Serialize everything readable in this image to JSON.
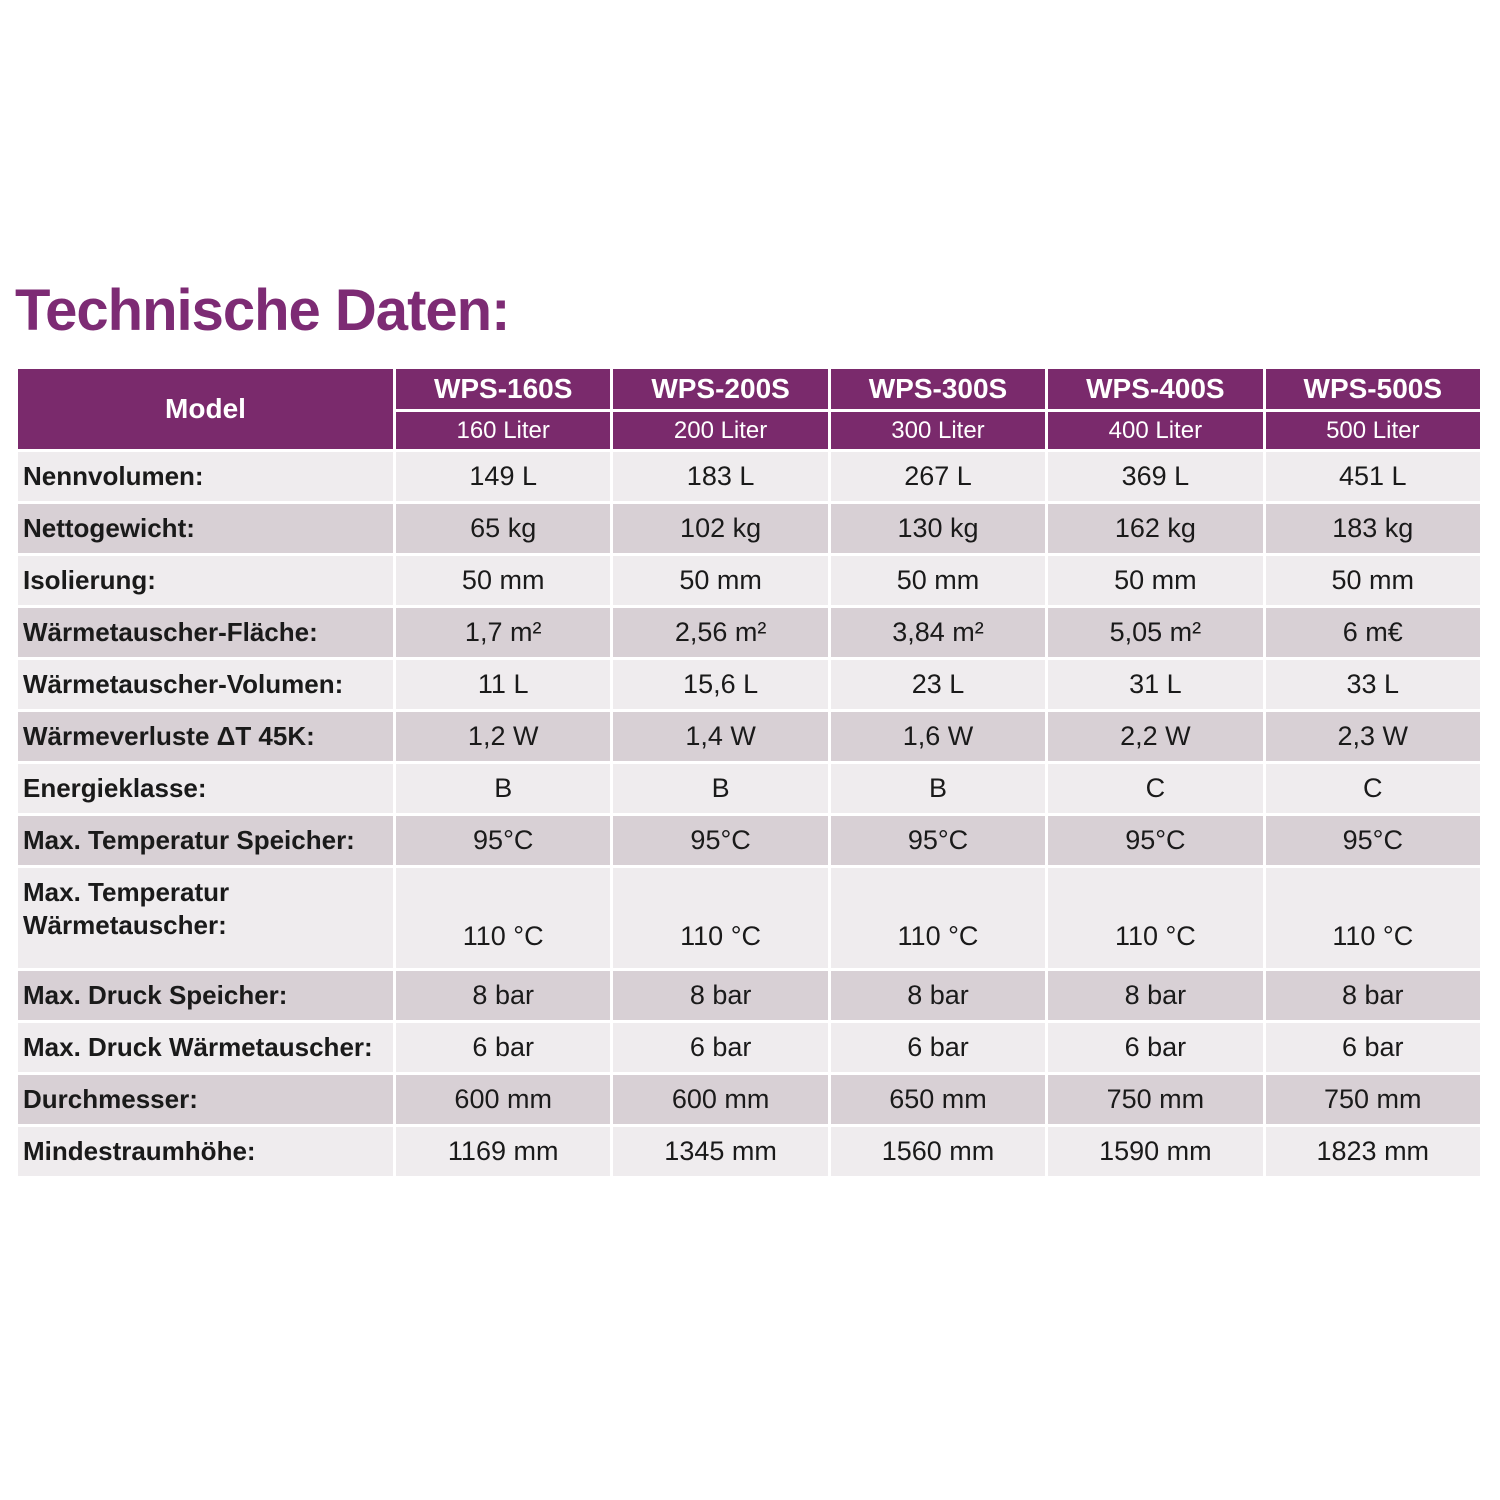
{
  "page": {
    "title": "Technische Daten:"
  },
  "colors": {
    "header_bg": "#7a2a6c",
    "title": "#7d2b74",
    "row_light": "#efecee",
    "row_dark": "#d8d0d5"
  },
  "table": {
    "model_header": "Model",
    "columns": [
      {
        "model": "WPS-160S",
        "capacity": "160 Liter"
      },
      {
        "model": "WPS-200S",
        "capacity": "200 Liter"
      },
      {
        "model": "WPS-300S",
        "capacity": "300 Liter"
      },
      {
        "model": "WPS-400S",
        "capacity": "400 Liter"
      },
      {
        "model": "WPS-500S",
        "capacity": "500 Liter"
      }
    ],
    "rows": [
      {
        "label": "Nennvolumen:",
        "values": [
          "149 L",
          "183 L",
          "267 L",
          "369 L",
          "451 L"
        ]
      },
      {
        "label": "Nettogewicht:",
        "values": [
          "65 kg",
          "102 kg",
          "130 kg",
          "162 kg",
          "183 kg"
        ]
      },
      {
        "label": "Isolierung:",
        "values": [
          "50 mm",
          "50 mm",
          "50 mm",
          "50 mm",
          "50 mm"
        ]
      },
      {
        "label": "Wärmetauscher-Fläche:",
        "values": [
          "1,7 m²",
          "2,56 m²",
          "3,84 m²",
          "5,05 m²",
          "6 m€"
        ]
      },
      {
        "label": "Wärmetauscher-Volumen:",
        "values": [
          "11 L",
          "15,6 L",
          "23 L",
          "31 L",
          "33 L"
        ]
      },
      {
        "label": "Wärmeverluste ΔT 45K:",
        "values": [
          "1,2 W",
          "1,4 W",
          "1,6 W",
          "2,2 W",
          "2,3 W"
        ]
      },
      {
        "label": "Energieklasse:",
        "values": [
          "B",
          "B",
          "B",
          "C",
          "C"
        ]
      },
      {
        "label": "Max. Temperatur Speicher:",
        "values": [
          "95°C",
          "95°C",
          "95°C",
          "95°C",
          "95°C"
        ]
      },
      {
        "label": "Max. Temperatur Wärmetauscher:",
        "values": [
          "110 °C",
          "110 °C",
          "110 °C",
          "110 °C",
          "110 °C"
        ]
      },
      {
        "label": "Max. Druck Speicher:",
        "values": [
          "8 bar",
          "8 bar",
          "8 bar",
          "8 bar",
          "8 bar"
        ]
      },
      {
        "label": "Max. Druck Wärmetauscher:",
        "values": [
          "6 bar",
          "6 bar",
          "6 bar",
          "6 bar",
          "6 bar"
        ]
      },
      {
        "label": "Durchmesser:",
        "values": [
          "600 mm",
          "600 mm",
          "650 mm",
          "750 mm",
          "750 mm"
        ]
      },
      {
        "label": "Mindestraumhöhe:",
        "values": [
          "1169 mm",
          "1345 mm",
          "1560 mm",
          "1590 mm",
          "1823 mm"
        ]
      }
    ]
  }
}
